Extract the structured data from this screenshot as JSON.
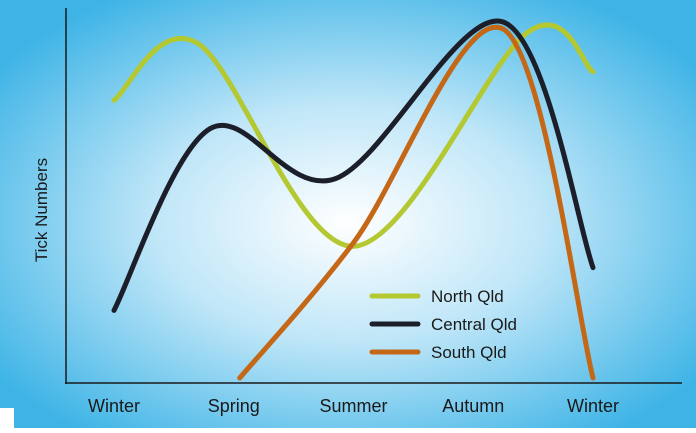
{
  "chart_data": {
    "type": "line",
    "title": "",
    "xlabel": "",
    "ylabel": "Tick Numbers",
    "categories": [
      "Winter",
      "Spring",
      "Summer",
      "Autumn",
      "Winter"
    ],
    "ylim": [
      0,
      100
    ],
    "grid": false,
    "legend_position": "bottom-right",
    "series": [
      {
        "name": "North Qld",
        "color": "#b4c832",
        "points": [
          [
            0,
            78
          ],
          [
            0.7,
            94
          ],
          [
            2,
            37
          ],
          [
            3.45,
            97
          ],
          [
            4,
            86
          ]
        ]
      },
      {
        "name": "Central Qld",
        "color": "#1c1e2a",
        "points": [
          [
            0,
            19
          ],
          [
            0.8,
            70
          ],
          [
            1.85,
            56
          ],
          [
            3.25,
            100
          ],
          [
            4,
            31
          ]
        ]
      },
      {
        "name": "South Qld",
        "color": "#c46818",
        "points": [
          [
            1.05,
            0
          ],
          [
            2.0,
            38
          ],
          [
            3.25,
            98
          ],
          [
            4,
            0
          ]
        ]
      }
    ]
  }
}
